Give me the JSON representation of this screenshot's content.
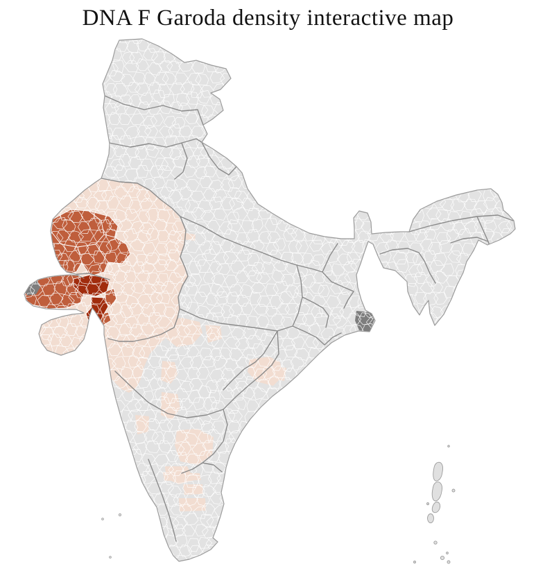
{
  "title": "DNA F Garoda density interactive map",
  "map": {
    "kind": "choropleth-india-districts",
    "palette": {
      "background": "#ffffff",
      "no_data": "#e2e2e2",
      "density_low": "#f2ddd1",
      "density_medium": "#bf5e3c",
      "density_high": "#a12c0d",
      "terrain_flats": "#7d7d7d",
      "district_border": "#ffffff",
      "state_border": "#8a8a8a",
      "country_outline": "#9b9b9b",
      "island_fill": "#e0e0e0"
    }
  }
}
